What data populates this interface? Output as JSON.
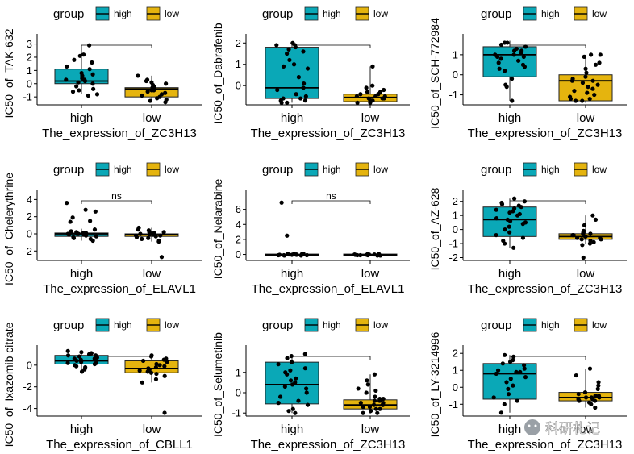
{
  "legend": {
    "title": "group",
    "items": [
      {
        "label": "high",
        "color": "#0AA8B7"
      },
      {
        "label": "low",
        "color": "#E5B40E"
      }
    ]
  },
  "watermark": "科研札记",
  "chart_data": [
    {
      "type": "box",
      "ylabel": "IC50_of_TAK-632",
      "xlabel": "The_expression_of_ZC3H13",
      "categories": [
        "high",
        "low"
      ],
      "ylim": [
        -1.6,
        3.4
      ],
      "yticks": [
        -1,
        0,
        1,
        2,
        3
      ],
      "boxes": [
        {
          "q1": 0.0,
          "median": 0.2,
          "q3": 1.1,
          "min": -0.8,
          "max": 2.9
        },
        {
          "q1": -1.0,
          "median": -0.4,
          "q3": -0.3,
          "min": -1.4,
          "max": 0.6
        }
      ],
      "points": [
        [
          2.9,
          2.2,
          2.1,
          1.8,
          1.6,
          1.1,
          0.8,
          0.6,
          0.4,
          0.3,
          0.3,
          0.2,
          0.1,
          0.0,
          -0.2,
          -0.5,
          -0.6,
          -0.8,
          -0.9,
          -0.4,
          0.7,
          1.3
        ],
        [
          0.6,
          0.3,
          0.2,
          0.0,
          -0.1,
          -0.2,
          -0.3,
          -0.4,
          -0.5,
          -0.6,
          -0.7,
          -0.8,
          -0.9,
          -1.0,
          -1.1,
          -1.2,
          -1.3,
          -1.4,
          -0.5,
          -0.3,
          0.1
        ]
      ],
      "sig": ""
    },
    {
      "type": "box",
      "ylabel": "IC50_of_Dabrafenib",
      "xlabel": "The_expression_of_ZC3H13",
      "categories": [
        "high",
        "low"
      ],
      "ylim": [
        -0.9,
        2.2
      ],
      "yticks": [
        0,
        1,
        2
      ],
      "boxes": [
        {
          "q1": -0.6,
          "median": -0.1,
          "q3": 1.8,
          "min": -0.8,
          "max": 2.0
        },
        {
          "q1": -0.75,
          "median": -0.55,
          "q3": -0.4,
          "min": -0.85,
          "max": 0.9
        }
      ],
      "points": [
        [
          2.0,
          2.0,
          1.9,
          1.9,
          1.8,
          1.7,
          1.6,
          1.5,
          1.2,
          0.9,
          0.8,
          0.4,
          0.1,
          -0.1,
          -0.2,
          -0.4,
          -0.5,
          -0.6,
          -0.6,
          -0.7,
          -0.7,
          -0.8,
          -0.8,
          1.0
        ],
        [
          0.9,
          0.0,
          -0.1,
          -0.2,
          -0.3,
          -0.4,
          -0.4,
          -0.5,
          -0.5,
          -0.6,
          -0.6,
          -0.7,
          -0.7,
          -0.8,
          -0.8,
          -0.5,
          -0.3,
          -0.6,
          -0.7
        ]
      ],
      "sig": ""
    },
    {
      "type": "box",
      "ylabel": "IC50_of_SCH-772984",
      "xlabel": "The_expression_of_ZC3H13",
      "categories": [
        "high",
        "low"
      ],
      "ylim": [
        -1.5,
        1.8
      ],
      "yticks": [
        -1,
        0,
        1
      ],
      "boxes": [
        {
          "q1": -0.1,
          "median": 1.0,
          "q3": 1.4,
          "min": -1.3,
          "max": 1.7
        },
        {
          "q1": -1.3,
          "median": -0.3,
          "q3": 0.0,
          "min": -1.4,
          "max": 1.0
        }
      ],
      "points": [
        [
          1.6,
          1.6,
          1.5,
          1.4,
          1.3,
          1.2,
          1.1,
          1.0,
          1.0,
          0.9,
          0.8,
          0.7,
          0.6,
          0.5,
          0.3,
          0.2,
          -0.2,
          -0.5,
          -0.6,
          -1.3,
          0.9,
          1.2,
          0.4
        ],
        [
          1.0,
          1.0,
          0.9,
          0.6,
          0.3,
          0.1,
          -0.1,
          -0.2,
          -0.3,
          -0.4,
          -0.5,
          -0.6,
          -0.8,
          -0.9,
          -1.0,
          -1.1,
          -1.2,
          -1.2,
          -1.3,
          -1.3,
          -0.3,
          -0.7,
          0.5
        ]
      ],
      "sig": ""
    },
    {
      "type": "box",
      "ylabel": "IC50_of_Chelerythrine",
      "xlabel": "The_expression_of_ELAVL1",
      "categories": [
        "high",
        "low"
      ],
      "ylim": [
        -3.1,
        4.6
      ],
      "yticks": [
        -2,
        0,
        2,
        4
      ],
      "boxes": [
        {
          "q1": -0.3,
          "median": 0.0,
          "q3": 0.1,
          "min": -0.8,
          "max": 0.6
        },
        {
          "q1": -0.3,
          "median": -0.1,
          "q3": 0.0,
          "min": -0.9,
          "max": 0.7
        }
      ],
      "points": [
        [
          3.6,
          2.8,
          2.6,
          1.9,
          1.5,
          1.4,
          0.5,
          0.3,
          0.2,
          0.1,
          0.0,
          0.0,
          -0.1,
          -0.1,
          -0.2,
          -0.3,
          -0.4,
          -0.5,
          -0.6,
          -0.8,
          0.1,
          0.0
        ],
        [
          0.7,
          0.5,
          0.4,
          0.2,
          0.1,
          0.0,
          -0.1,
          -0.2,
          -0.2,
          -0.3,
          -0.4,
          -0.5,
          -0.6,
          -0.8,
          -0.9,
          -2.7,
          0.0,
          -0.1,
          0.2
        ]
      ],
      "sig": "ns"
    },
    {
      "type": "box",
      "ylabel": "IC50_of_Nelarabine",
      "xlabel": "The_expression_of_ELAVL1",
      "categories": [
        "high",
        "low"
      ],
      "ylim": [
        -0.8,
        8.0
      ],
      "yticks": [
        0,
        2,
        4,
        6
      ],
      "boxes": [
        {
          "q1": -0.15,
          "median": -0.05,
          "q3": 0.05,
          "min": -0.2,
          "max": 0.2
        },
        {
          "q1": -0.15,
          "median": -0.05,
          "q3": 0.05,
          "min": -0.2,
          "max": 0.2
        }
      ],
      "points": [
        [
          6.9,
          2.5,
          0.1,
          0.05,
          0.0,
          0.0,
          -0.05,
          -0.05,
          -0.1,
          -0.1,
          -0.15,
          -0.15,
          0.1,
          0.0,
          -0.1,
          -0.05,
          0.05
        ],
        [
          0.05,
          0.0,
          0.0,
          -0.05,
          -0.05,
          -0.1,
          -0.1,
          -0.15,
          -0.15,
          0.0,
          -0.05,
          -0.1,
          0.05,
          -0.1
        ]
      ],
      "sig": "ns"
    },
    {
      "type": "box",
      "ylabel": "IC50_of_AZ-628",
      "xlabel": "The_expression_of_ZC3H13",
      "categories": [
        "high",
        "low"
      ],
      "ylim": [
        -2.2,
        2.5
      ],
      "yticks": [
        -2,
        -1,
        0,
        1,
        2
      ],
      "boxes": [
        {
          "q1": -0.5,
          "median": 0.7,
          "q3": 1.6,
          "min": -1.3,
          "max": 2.2
        },
        {
          "q1": -0.7,
          "median": -0.5,
          "q3": -0.3,
          "min": -1.0,
          "max": 1.0
        }
      ],
      "points": [
        [
          2.2,
          2.0,
          1.9,
          1.8,
          1.7,
          1.6,
          1.5,
          1.4,
          1.2,
          1.1,
          1.0,
          0.8,
          0.7,
          0.5,
          0.4,
          0.2,
          0.0,
          -0.2,
          -0.4,
          -0.6,
          -0.8,
          -1.0,
          -1.3,
          1.3,
          0.6
        ],
        [
          1.0,
          0.7,
          0.3,
          -0.1,
          -0.2,
          -0.3,
          -0.4,
          -0.5,
          -0.5,
          -0.6,
          -0.6,
          -0.7,
          -0.8,
          -0.9,
          -1.0,
          -1.1,
          -2.0,
          -0.4,
          -0.7,
          -0.3
        ]
      ],
      "sig": ""
    },
    {
      "type": "box",
      "ylabel": "IC50_of_Ixazomib citrate",
      "xlabel": "The_expression_of_CBLL1",
      "categories": [
        "high",
        "low"
      ],
      "ylim": [
        -4.7,
        1.4
      ],
      "yticks": [
        -4,
        -2,
        0
      ],
      "boxes": [
        {
          "q1": 0.1,
          "median": 0.4,
          "q3": 0.9,
          "min": -0.6,
          "max": 1.3
        },
        {
          "q1": -0.7,
          "median": -0.3,
          "q3": 0.4,
          "min": -1.6,
          "max": 0.9
        }
      ],
      "points": [
        [
          1.3,
          1.2,
          1.1,
          1.0,
          0.9,
          0.8,
          0.7,
          0.6,
          0.5,
          0.4,
          0.3,
          0.2,
          0.1,
          0.0,
          -0.1,
          -0.2,
          -0.4,
          -0.6,
          0.6,
          0.9,
          0.2
        ],
        [
          0.9,
          0.8,
          0.6,
          0.4,
          0.3,
          0.1,
          0.0,
          -0.2,
          -0.3,
          -0.4,
          -0.5,
          -0.6,
          -0.8,
          -1.0,
          -1.3,
          -1.6,
          -4.4,
          -0.1,
          0.5,
          -0.7
        ]
      ],
      "sig": ""
    },
    {
      "type": "box",
      "ylabel": "IC50_of_Selumetinib",
      "xlabel": "The_expression_of_ZC3H13",
      "categories": [
        "high",
        "low"
      ],
      "ylim": [
        -1.15,
        2.1
      ],
      "yticks": [
        -1,
        0,
        1
      ],
      "boxes": [
        {
          "q1": -0.55,
          "median": 0.4,
          "q3": 1.5,
          "min": -1.0,
          "max": 1.9
        },
        {
          "q1": -0.8,
          "median": -0.6,
          "q3": -0.35,
          "min": -1.05,
          "max": 0.9
        }
      ],
      "points": [
        [
          1.9,
          1.8,
          1.7,
          1.5,
          1.4,
          1.2,
          1.0,
          0.9,
          0.7,
          0.5,
          0.4,
          0.3,
          0.2,
          0.0,
          -0.2,
          -0.4,
          -0.5,
          -0.6,
          -0.8,
          -0.9,
          -1.0,
          1.1,
          0.6
        ],
        [
          0.9,
          0.6,
          0.4,
          0.2,
          0.0,
          -0.2,
          -0.3,
          -0.4,
          -0.5,
          -0.5,
          -0.6,
          -0.6,
          -0.7,
          -0.7,
          -0.8,
          -0.8,
          -0.9,
          -1.0,
          -1.0,
          -0.4,
          -0.6,
          0.1,
          -0.3
        ]
      ],
      "sig": ""
    },
    {
      "type": "box",
      "ylabel": "IC50_of_LY-3214996",
      "xlabel": "The_expression_of_ZC3H13",
      "categories": [
        "high",
        "low"
      ],
      "ylim": [
        -1.7,
        2.2
      ],
      "yticks": [
        -1,
        0,
        1,
        2
      ],
      "boxes": [
        {
          "q1": -0.7,
          "median": 0.8,
          "q3": 1.4,
          "min": -1.5,
          "max": 1.9
        },
        {
          "q1": -0.8,
          "median": -0.6,
          "q3": -0.3,
          "min": -1.2,
          "max": 1.1
        }
      ],
      "points": [
        [
          1.9,
          1.8,
          1.6,
          1.5,
          1.4,
          1.3,
          1.1,
          1.0,
          0.9,
          0.8,
          0.6,
          0.5,
          0.3,
          0.1,
          -0.1,
          -0.4,
          -0.6,
          -0.8,
          -1.0,
          -1.5,
          0.9
        ],
        [
          1.1,
          0.7,
          0.3,
          0.1,
          -0.1,
          -0.3,
          -0.4,
          -0.5,
          -0.6,
          -0.6,
          -0.7,
          -0.7,
          -0.8,
          -0.9,
          -1.0,
          -1.2,
          -0.5,
          -0.8,
          -0.6
        ]
      ],
      "sig": ""
    }
  ]
}
